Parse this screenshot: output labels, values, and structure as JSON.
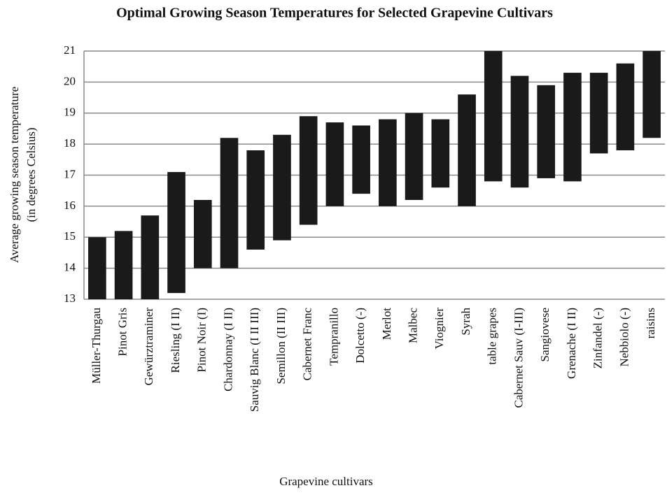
{
  "chart_data": {
    "type": "range_bar",
    "title": "Optimal Growing Season Temperatures for Selected Grapevine Cultivars",
    "y_label": [
      "Average growing season temperature",
      "(in degrees Celsius)"
    ],
    "x_label": "Grapevine cultivars",
    "categories": [
      "Müller-Thurgau",
      "Pinot Gris",
      "Gewürztraminer",
      "Riesling (I II)",
      "Pinot Noir (I)",
      "Chardonnay (I II)",
      "Sauvig Blanc (I II III)",
      "Semillon (II III)",
      "Cabernet Franc",
      "Tempranillo",
      "Dolcetto (-)",
      "Merlot",
      "Malbec",
      "Viognier",
      "Syrah",
      "table grapes",
      "Cabernet Sauv (I-III)",
      "Sangiovese",
      "Grenache (I II)",
      "Zinfandel (-)",
      "Nebbiolo (-)",
      "raisins"
    ],
    "low": [
      13,
      13,
      13,
      13.2,
      14,
      14,
      14.6,
      14.9,
      15.4,
      16,
      16.4,
      16,
      16.2,
      16.6,
      16,
      16.8,
      16.6,
      16.9,
      16.8,
      17.7,
      17.8,
      18.2
    ],
    "high": [
      15,
      15.2,
      15.7,
      17.1,
      16.2,
      18.2,
      17.8,
      18.3,
      18.9,
      18.7,
      18.6,
      18.8,
      19,
      18.8,
      19.6,
      21,
      20.2,
      19.9,
      20.3,
      20.3,
      20.6,
      21
    ],
    "color": "#1a1a1a",
    "ylim": [
      13,
      21
    ],
    "yticks": [
      13,
      14,
      15,
      16,
      17,
      18,
      19,
      20,
      21
    ],
    "grid": true
  }
}
